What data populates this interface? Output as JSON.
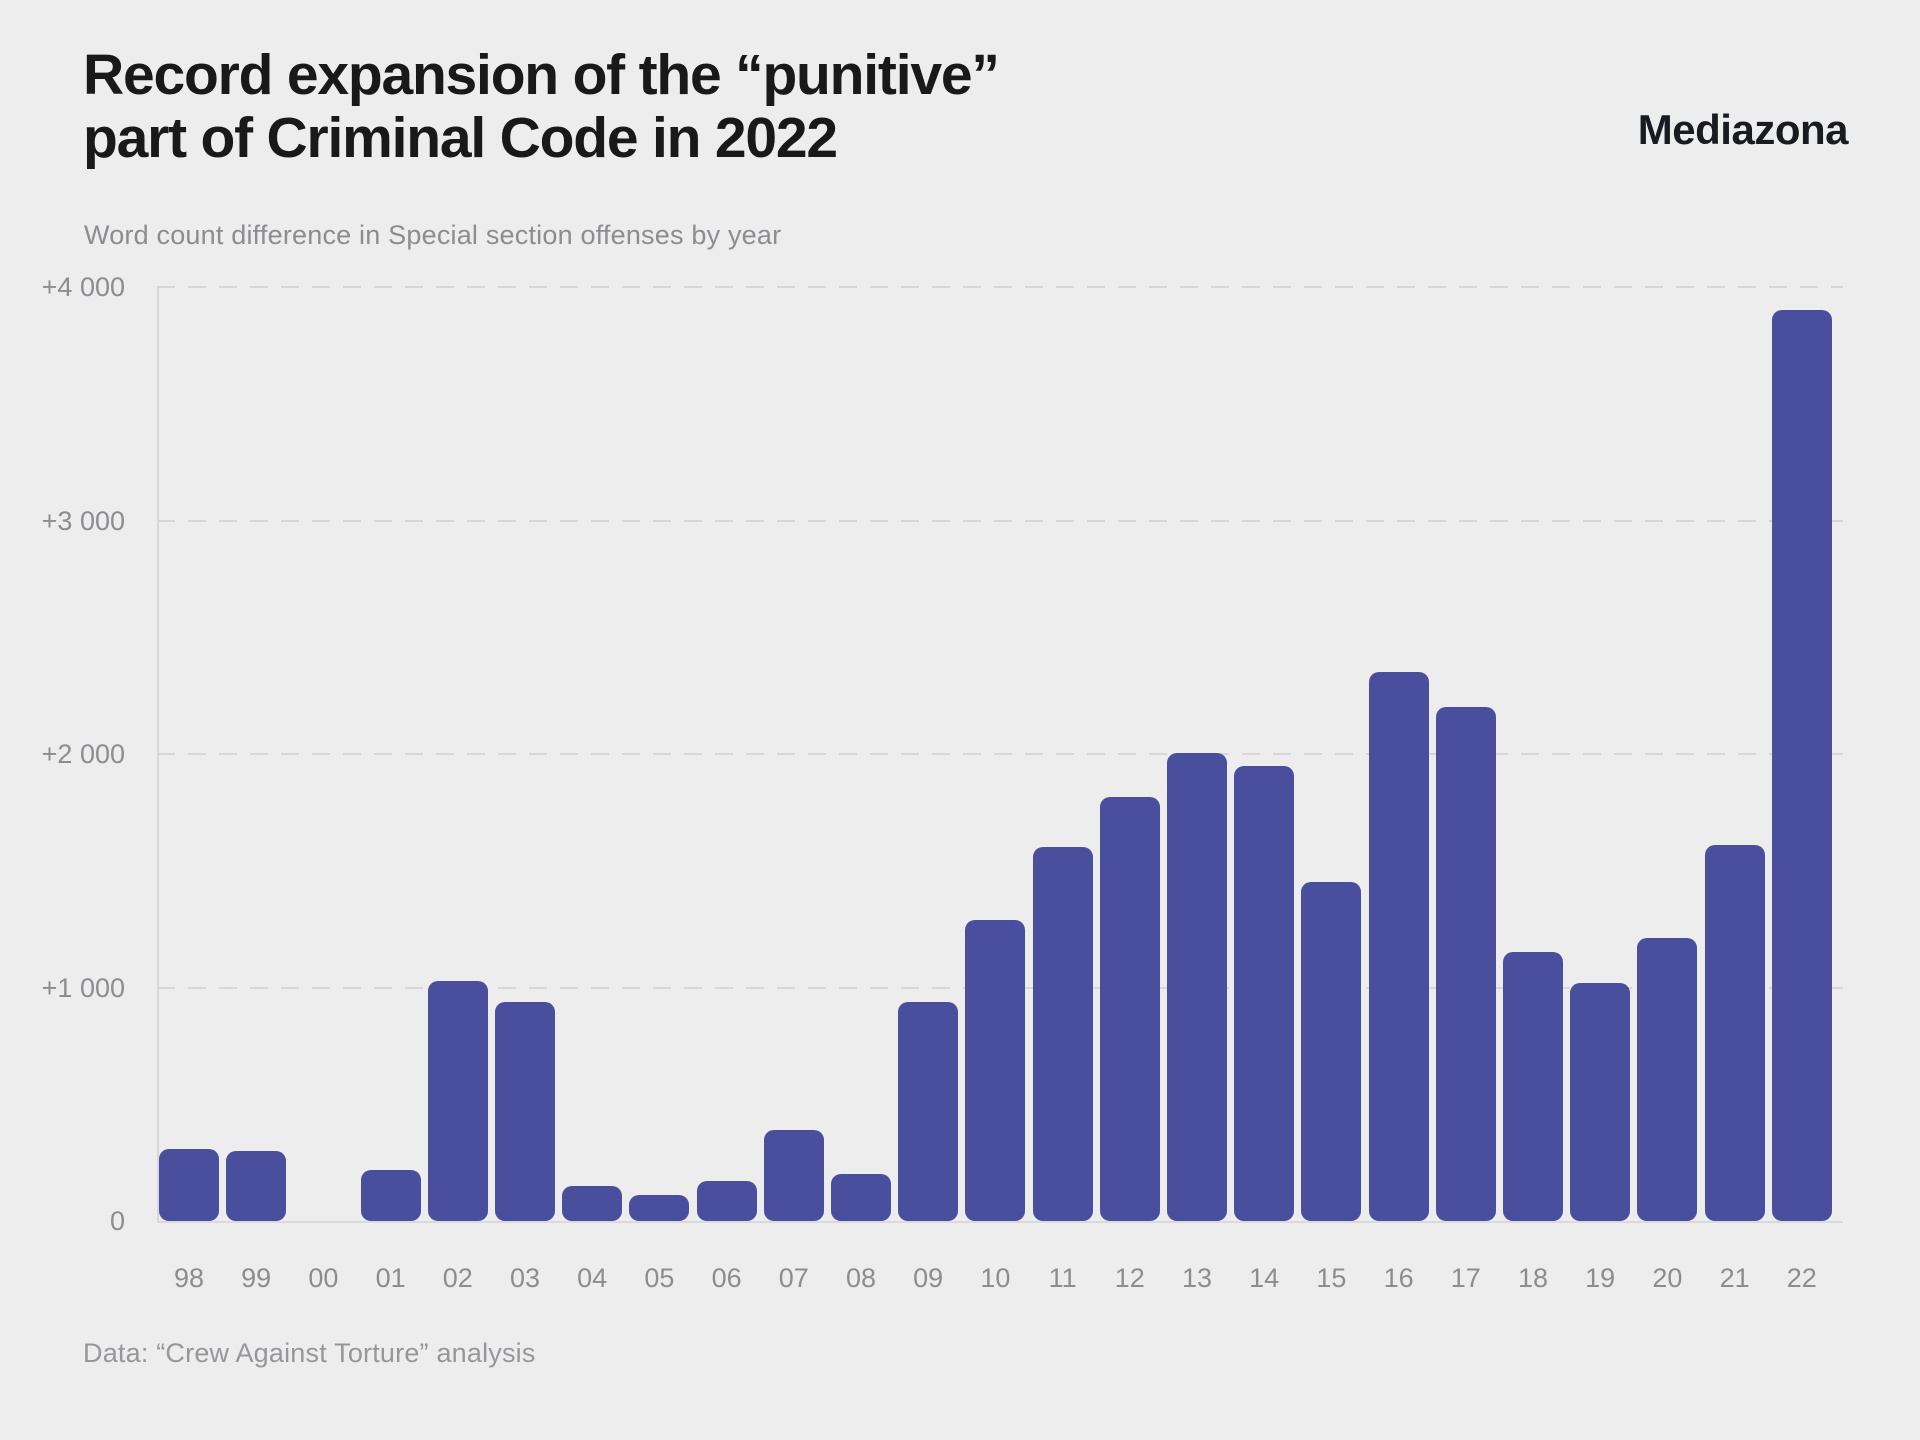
{
  "header": {
    "title_line1": "Record expansion of the “punitive”",
    "title_line2": "part of Criminal Code in 2022",
    "subtitle": "Word count difference in Special section offenses by year",
    "brand": "Mediazona"
  },
  "footer": {
    "source": "Data: “Crew Against Torture” analysis"
  },
  "colors": {
    "background": "#ededee",
    "bar": "#4a4f9d",
    "grid": "#d7d7d9",
    "axis": "#d9d9db",
    "title_text": "#191919",
    "muted_text": "#8d8d90",
    "source_text": "#97979a"
  },
  "chart_data": {
    "type": "bar",
    "title": "Record expansion of the “punitive” part of Criminal Code in 2022",
    "subtitle": "Word count difference in Special section offenses by year",
    "xlabel": "",
    "ylabel": "",
    "categories": [
      "98",
      "99",
      "00",
      "01",
      "02",
      "03",
      "04",
      "05",
      "06",
      "07",
      "08",
      "09",
      "10",
      "11",
      "12",
      "13",
      "14",
      "15",
      "16",
      "17",
      "18",
      "19",
      "20",
      "21",
      "22"
    ],
    "values": [
      310,
      300,
      0,
      220,
      1030,
      940,
      150,
      110,
      170,
      390,
      200,
      940,
      1290,
      1600,
      1815,
      2005,
      1950,
      1450,
      2350,
      2200,
      1150,
      1020,
      1210,
      1610,
      3900
    ],
    "ylim": [
      0,
      4000
    ],
    "y_ticks": [
      {
        "value": 0,
        "label": "0"
      },
      {
        "value": 1000,
        "label": "+1 000"
      },
      {
        "value": 2000,
        "label": "+2 000"
      },
      {
        "value": 3000,
        "label": "+3 000"
      },
      {
        "value": 4000,
        "label": "+4 000"
      }
    ],
    "grid": "horizontal-dashed",
    "legend": "none"
  }
}
